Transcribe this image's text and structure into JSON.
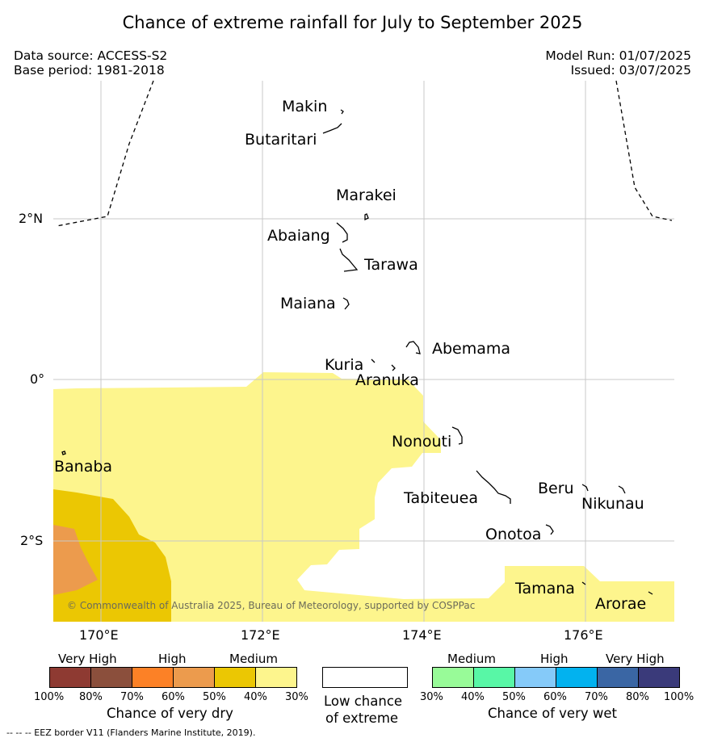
{
  "title": "Chance of extreme rainfall for July to September 2025",
  "header": {
    "data_source": "Data source: ACCESS-S2",
    "base_period": "Base period: 1981-2018",
    "model_run": "Model Run: 01/07/2025",
    "issued": "Issued: 03/07/2025"
  },
  "map": {
    "lat_labels": [
      "2°N",
      "0°",
      "2°S"
    ],
    "lon_labels": [
      "170°E",
      "172°E",
      "174°E",
      "176°E"
    ],
    "places": [
      "Makin",
      "Butaritari",
      "Marakei",
      "Abaiang",
      "Tarawa",
      "Maiana",
      "Abemama",
      "Kuria",
      "Aranuka",
      "Nonouti",
      "Banaba",
      "Tabiteuea",
      "Beru",
      "Nikunau",
      "Onotoa",
      "Tamana",
      "Arorae"
    ],
    "copyright": "© Commonwealth of Australia 2025, Bureau of Meteorology, supported by COSPPac",
    "colors": {
      "dry_medium_light": "#fdf58d",
      "dry_medium_dark": "#ebc703",
      "dry_high_light": "#ec9b4d",
      "low_chance": "#ffffff",
      "eez_border": "#000000",
      "grid": "#cccccc"
    }
  },
  "legend": {
    "dry": {
      "headings": [
        "Very High",
        "High",
        "Medium"
      ],
      "ticks": [
        "100%",
        "80%",
        "70%",
        "60%",
        "50%",
        "40%",
        "30%"
      ],
      "colors": [
        "#8e3a32",
        "#8b4f3c",
        "#fc8126",
        "#ec9b4d",
        "#ebc703",
        "#fdf58d"
      ],
      "caption": "Chance of very dry"
    },
    "neutral": {
      "caption_line1": "Low chance",
      "caption_line2": "of extreme",
      "color": "#ffffff"
    },
    "wet": {
      "headings": [
        "Medium",
        "High",
        "Very High"
      ],
      "ticks": [
        "30%",
        "40%",
        "50%",
        "60%",
        "70%",
        "80%",
        "100%"
      ],
      "colors": [
        "#98fb98",
        "#58f7a6",
        "#85caf9",
        "#02b2ef",
        "#3a66a4",
        "#3a3a7a"
      ],
      "caption": "Chance of very wet"
    }
  },
  "footer": {
    "eez_note": "--  --  -- EEZ border V11 (Flanders Marine Institute, 2019)."
  }
}
